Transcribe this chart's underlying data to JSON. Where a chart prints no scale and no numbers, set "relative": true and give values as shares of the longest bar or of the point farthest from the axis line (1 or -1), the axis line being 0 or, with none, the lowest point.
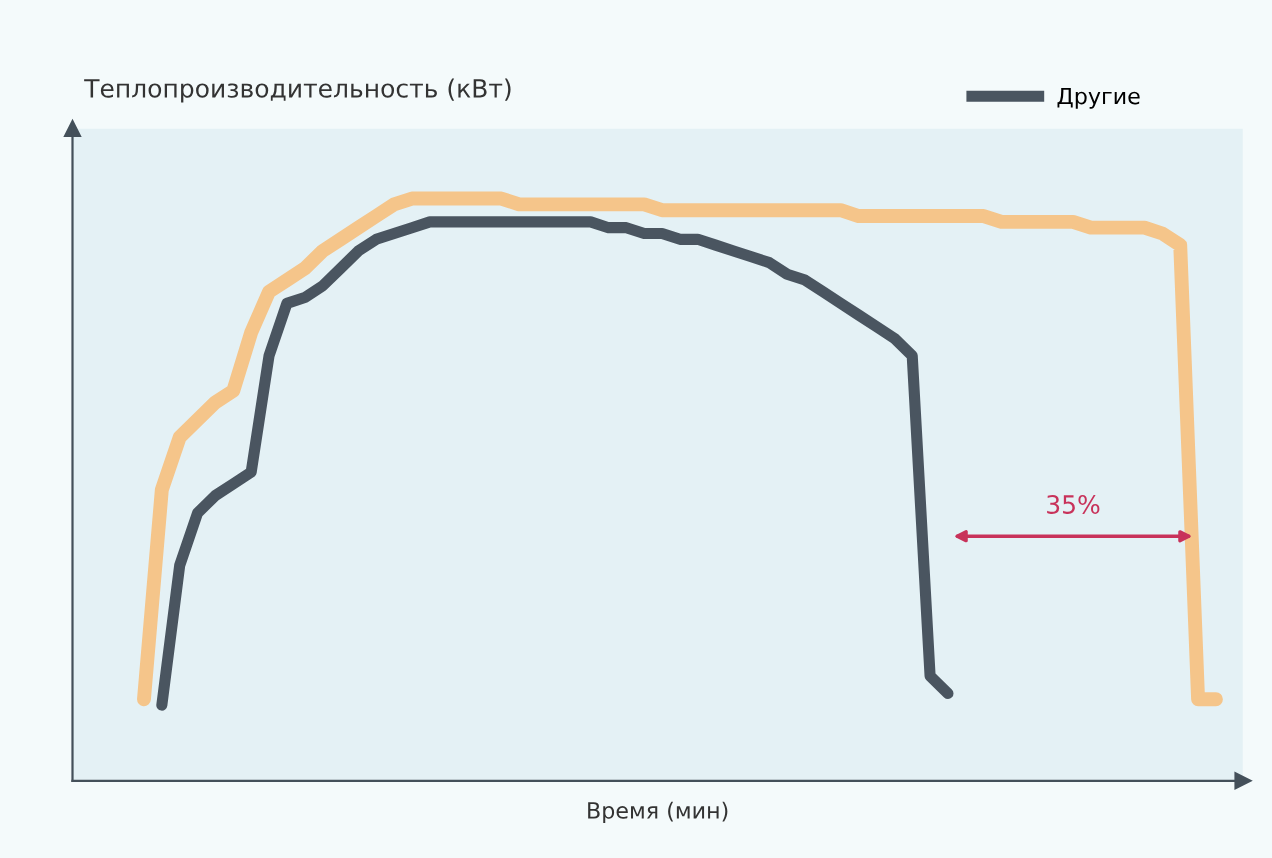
{
  "chart_data": {
    "type": "line",
    "relative": true,
    "ylabel": "Теплопроизводительность (кВт)",
    "xlabel": "Время (мин)",
    "categories": [
      null,
      null,
      null,
      null,
      null,
      null,
      null,
      null,
      null,
      null,
      null,
      null,
      null,
      null,
      null,
      null,
      null,
      null,
      null,
      null,
      null,
      null,
      null,
      null,
      null,
      null,
      null,
      null,
      null,
      null,
      null,
      null,
      null,
      null,
      null,
      null,
      null,
      null,
      null,
      null,
      null,
      null,
      null,
      null,
      null,
      null,
      null,
      null,
      null,
      null,
      null,
      null,
      null,
      null,
      null,
      null,
      null,
      null,
      null,
      null,
      null
    ],
    "series": [
      {
        "color": "#f5c58a",
        "values": [
          0.14,
          0.5,
          0.59,
          0.62,
          0.65,
          0.67,
          0.77,
          0.84,
          0.86,
          0.88,
          0.91,
          0.93,
          0.95,
          0.97,
          0.99,
          1.0,
          1.0,
          1.0,
          1.0,
          1.0,
          1.0,
          0.99,
          0.99,
          0.99,
          0.99,
          0.99,
          0.99,
          0.99,
          0.99,
          0.98,
          0.98,
          0.98,
          0.98,
          0.98,
          0.98,
          0.98,
          0.98,
          0.98,
          0.98,
          0.98,
          0.97,
          0.97,
          0.97,
          0.97,
          0.97,
          0.97,
          0.97,
          0.97,
          0.96,
          0.96,
          0.96,
          0.96,
          0.96,
          0.95,
          0.95,
          0.95,
          0.95,
          0.94,
          0.92,
          0.14,
          0.14
        ]
      },
      {
        "name": "Другие",
        "color": "#4a5560",
        "values": [
          null,
          0.13,
          0.37,
          0.46,
          0.49,
          0.51,
          0.53,
          0.73,
          0.82,
          0.83,
          0.85,
          0.88,
          0.91,
          0.93,
          0.94,
          0.95,
          0.96,
          0.96,
          0.96,
          0.96,
          0.96,
          0.96,
          0.96,
          0.96,
          0.96,
          0.96,
          0.95,
          0.95,
          0.94,
          0.94,
          0.93,
          0.93,
          0.92,
          0.91,
          0.9,
          0.89,
          0.87,
          0.86,
          0.84,
          0.82,
          0.8,
          0.78,
          0.76,
          0.73,
          0.18,
          0.15,
          null,
          null,
          null,
          null,
          null,
          null,
          null,
          null,
          null,
          null,
          null,
          null,
          null,
          null,
          null
        ]
      }
    ],
    "annotations": [
      "35%"
    ],
    "legend": "top right",
    "grid": false,
    "marker": "none",
    "line_style": "solid"
  }
}
